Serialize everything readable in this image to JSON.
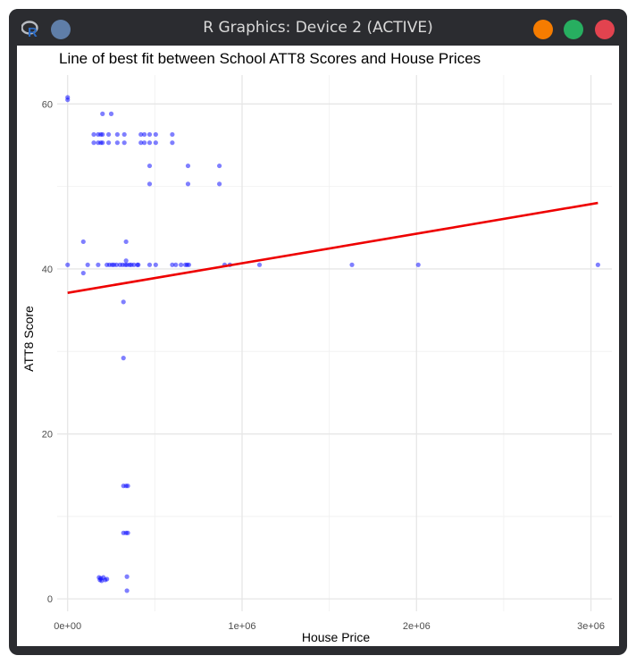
{
  "window": {
    "title": "R Graphics: Device 2 (ACTIVE)",
    "logo_icon": "r-logo-icon",
    "menu_icon": "menu-dot-icon",
    "buttons": [
      {
        "name": "minimize-button",
        "color": "#f57c00"
      },
      {
        "name": "maximize-button",
        "color": "#27ae60"
      },
      {
        "name": "close-button",
        "color": "#e2434f"
      }
    ]
  },
  "chart_data": {
    "type": "scatter",
    "title": "Line of best fit between School ATT8 Scores and House Prices",
    "xlabel": "House Price",
    "ylabel": "ATT8 Score",
    "xlim": [
      -60000,
      3120000
    ],
    "ylim": [
      -1.5,
      63.5
    ],
    "xticks": [
      0,
      1000000,
      2000000,
      3000000
    ],
    "xtick_labels": [
      "0e+00",
      "1e+06",
      "2e+06",
      "3e+06"
    ],
    "yticks": [
      0,
      20,
      40,
      60
    ],
    "ytick_labels": [
      "0",
      "20",
      "40",
      "60"
    ],
    "grid": true,
    "point_color": "#0000ff",
    "line_color": "#ee0000",
    "points": [
      [
        0,
        60.8
      ],
      [
        0,
        60.5
      ],
      [
        0,
        40.5
      ],
      [
        90000,
        43.3
      ],
      [
        90000,
        39.5
      ],
      [
        115000,
        40.5
      ],
      [
        150000,
        56.3
      ],
      [
        150000,
        55.3
      ],
      [
        175000,
        56.3
      ],
      [
        175000,
        55.3
      ],
      [
        175000,
        40.5
      ],
      [
        190000,
        56.3
      ],
      [
        190000,
        55.3
      ],
      [
        200000,
        58.8
      ],
      [
        200000,
        56.3
      ],
      [
        200000,
        55.3
      ],
      [
        225000,
        40.5
      ],
      [
        240000,
        40.5
      ],
      [
        255000,
        40.5
      ],
      [
        235000,
        56.3
      ],
      [
        235000,
        55.3
      ],
      [
        250000,
        58.8
      ],
      [
        265000,
        40.5
      ],
      [
        280000,
        40.5
      ],
      [
        285000,
        56.3
      ],
      [
        285000,
        55.3
      ],
      [
        300000,
        40.5
      ],
      [
        315000,
        40.5
      ],
      [
        320000,
        36.0
      ],
      [
        320000,
        29.2
      ],
      [
        325000,
        56.3
      ],
      [
        325000,
        55.3
      ],
      [
        330000,
        40.5
      ],
      [
        335000,
        43.3
      ],
      [
        335000,
        41.0
      ],
      [
        340000,
        40.5
      ],
      [
        355000,
        40.5
      ],
      [
        365000,
        40.5
      ],
      [
        380000,
        40.5
      ],
      [
        400000,
        40.5
      ],
      [
        405000,
        40.5
      ],
      [
        420000,
        56.3
      ],
      [
        420000,
        55.3
      ],
      [
        440000,
        56.3
      ],
      [
        440000,
        55.3
      ],
      [
        470000,
        56.3
      ],
      [
        470000,
        55.3
      ],
      [
        470000,
        52.5
      ],
      [
        470000,
        50.3
      ],
      [
        470000,
        40.5
      ],
      [
        505000,
        56.3
      ],
      [
        505000,
        55.3
      ],
      [
        505000,
        40.5
      ],
      [
        600000,
        56.3
      ],
      [
        600000,
        55.3
      ],
      [
        600000,
        40.5
      ],
      [
        620000,
        40.5
      ],
      [
        650000,
        40.5
      ],
      [
        675000,
        40.5
      ],
      [
        685000,
        40.5
      ],
      [
        690000,
        52.5
      ],
      [
        690000,
        50.3
      ],
      [
        695000,
        40.5
      ],
      [
        870000,
        52.5
      ],
      [
        870000,
        50.3
      ],
      [
        900000,
        40.5
      ],
      [
        930000,
        40.5
      ],
      [
        1100000,
        40.5
      ],
      [
        1630000,
        40.5
      ],
      [
        2010000,
        40.5
      ],
      [
        3040000,
        40.5
      ],
      [
        320000,
        13.7
      ],
      [
        335000,
        13.7
      ],
      [
        345000,
        13.7
      ],
      [
        320000,
        8.0
      ],
      [
        335000,
        8.0
      ],
      [
        345000,
        8.0
      ],
      [
        180000,
        2.6
      ],
      [
        185000,
        2.3
      ],
      [
        190000,
        2.5
      ],
      [
        195000,
        2.2
      ],
      [
        205000,
        2.6
      ],
      [
        215000,
        2.3
      ],
      [
        225000,
        2.4
      ],
      [
        340000,
        2.7
      ],
      [
        340000,
        1.0
      ]
    ],
    "fit_line": {
      "x": [
        0,
        3040000
      ],
      "y": [
        37.1,
        48.0
      ]
    }
  }
}
